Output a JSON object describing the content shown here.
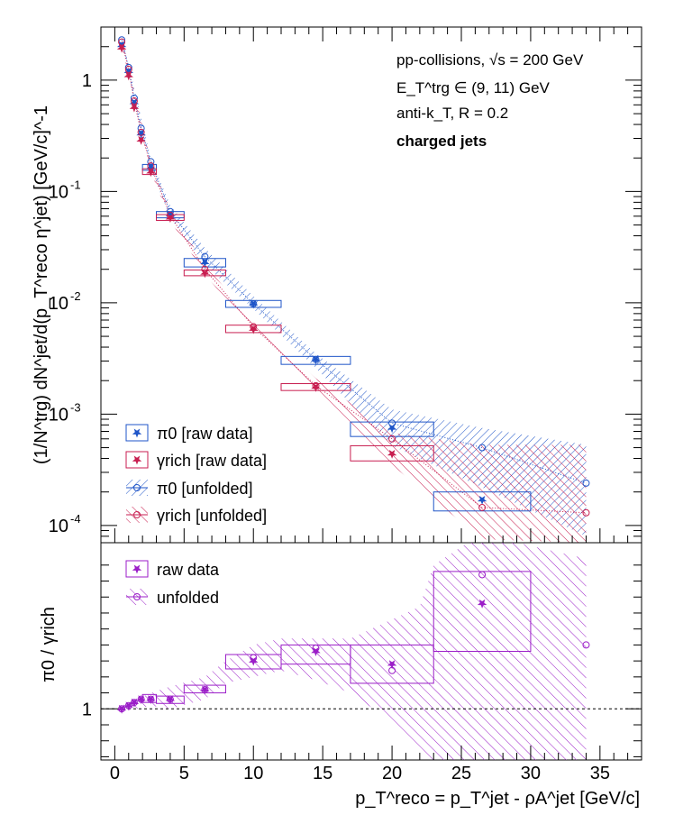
{
  "chart_data": [
    {
      "type": "scatter",
      "panel": "top",
      "yscale": "log",
      "ylim": [
        7e-05,
        3.0
      ],
      "xlim": [
        -1,
        38
      ],
      "ylabel": "(1/N^trg) dN^jet/d(p_T^reco η^jet) [GeV/c]^-1",
      "ytick_labels": [
        {
          "value": 1,
          "label": "1"
        },
        {
          "value": 0.1,
          "label": "10^-1"
        },
        {
          "value": 0.01,
          "label": "10^-2"
        },
        {
          "value": 0.001,
          "label": "10^-3"
        },
        {
          "value": 0.0001,
          "label": "10^-4"
        }
      ],
      "annotations": {
        "line1": "pp-collisions, √s = 200 GeV",
        "line2": "E_T^trg ∈ (9, 11) GeV",
        "line3": "anti-k_T, R = 0.2",
        "line4": "charged jets"
      },
      "series": [
        {
          "name": "π0 [raw data]",
          "color": "#1f55c8",
          "marker": "filled-star",
          "x": [
            0.5,
            1.0,
            1.4,
            1.9,
            2.6,
            4.0,
            6.5,
            10.0,
            14.5,
            20.0,
            26.5
          ],
          "y": [
            2.05,
            1.2,
            0.63,
            0.33,
            0.165,
            0.062,
            0.023,
            0.0098,
            0.0031,
            0.00075,
            0.00017
          ],
          "sys_boxes": [
            {
              "x0": 2.0,
              "x1": 3.0,
              "y0": 0.155,
              "y1": 0.175
            },
            {
              "x0": 3.0,
              "x1": 5.0,
              "y0": 0.058,
              "y1": 0.066
            },
            {
              "x0": 5.0,
              "x1": 8.0,
              "y0": 0.021,
              "y1": 0.025
            },
            {
              "x0": 8.0,
              "x1": 12.0,
              "y0": 0.0091,
              "y1": 0.0105
            },
            {
              "x0": 12.0,
              "x1": 17.0,
              "y0": 0.0028,
              "y1": 0.0033
            },
            {
              "x0": 17.0,
              "x1": 23.0,
              "y0": 0.00063,
              "y1": 0.00085
            },
            {
              "x0": 23.0,
              "x1": 30.0,
              "y0": 0.000135,
              "y1": 0.0002
            }
          ]
        },
        {
          "name": "γrich [raw data]",
          "color": "#c81e50",
          "marker": "filled-star",
          "x": [
            0.5,
            1.0,
            1.4,
            1.9,
            2.6,
            4.0,
            6.5,
            10.0,
            14.5,
            20.0
          ],
          "y": [
            1.95,
            1.1,
            0.57,
            0.29,
            0.15,
            0.058,
            0.0185,
            0.0058,
            0.00175,
            0.00044
          ],
          "sys_boxes": [
            {
              "x0": 2.0,
              "x1": 3.0,
              "y0": 0.142,
              "y1": 0.16
            },
            {
              "x0": 3.0,
              "x1": 5.0,
              "y0": 0.055,
              "y1": 0.062
            },
            {
              "x0": 5.0,
              "x1": 8.0,
              "y0": 0.0175,
              "y1": 0.0197
            },
            {
              "x0": 8.0,
              "x1": 12.0,
              "y0": 0.0054,
              "y1": 0.0063
            },
            {
              "x0": 12.0,
              "x1": 17.0,
              "y0": 0.00163,
              "y1": 0.00188
            },
            {
              "x0": 17.0,
              "x1": 23.0,
              "y0": 0.00038,
              "y1": 0.00052
            }
          ]
        },
        {
          "name": "π0 [unfolded]",
          "color": "#1f55c8",
          "marker": "open-circle",
          "x": [
            0.5,
            1.0,
            1.4,
            1.9,
            2.6,
            4.0,
            6.5,
            10.0,
            14.5,
            20.0,
            26.5,
            34.0
          ],
          "y": [
            2.3,
            1.3,
            0.69,
            0.37,
            0.185,
            0.066,
            0.026,
            0.0098,
            0.0031,
            0.00083,
            0.0005,
            0.00024
          ],
          "band": {
            "x": [
              0.5,
              2.6,
              4.0,
              6.5,
              10.0,
              14.5,
              20.0,
              26.5,
              34.0
            ],
            "y_low": [
              2.1,
              0.16,
              0.058,
              0.022,
              0.0088,
              0.0026,
              0.00052,
              0.00022,
              8e-05
            ],
            "y_high": [
              2.5,
              0.2,
              0.075,
              0.031,
              0.0115,
              0.0035,
              0.0011,
              0.00075,
              0.00053
            ]
          }
        },
        {
          "name": "γrich [unfolded]",
          "color": "#c81e50",
          "marker": "open-circle",
          "x": [
            0.5,
            1.0,
            1.4,
            1.9,
            2.6,
            4.0,
            6.5,
            10.0,
            14.5,
            20.0,
            26.5,
            34.0
          ],
          "y": [
            2.2,
            1.25,
            0.65,
            0.34,
            0.17,
            0.061,
            0.02,
            0.0061,
            0.0018,
            0.0006,
            0.000145,
            0.00013
          ],
          "band": {
            "x": [
              0.5,
              2.6,
              4.0,
              6.5,
              10.0,
              14.5,
              20.0,
              26.5,
              34.0
            ],
            "y_low": [
              2.0,
              0.15,
              0.055,
              0.018,
              0.0055,
              0.0015,
              0.00035,
              7.5e-05,
              7e-05
            ],
            "y_high": [
              2.4,
              0.19,
              0.068,
              0.022,
              0.0068,
              0.0021,
              0.00068,
              0.00053,
              0.00053
            ]
          }
        }
      ]
    },
    {
      "type": "scatter",
      "panel": "bottom",
      "xlabel": "p_T^reco = p_T^jet - ρA^jet [GeV/c]",
      "ylabel": "π0 / γrich",
      "ylim": [
        0.84,
        1.52
      ],
      "xlim": [
        -1,
        38
      ],
      "xticks": [
        0,
        5,
        10,
        15,
        20,
        25,
        30,
        35
      ],
      "ytick_labels": [
        {
          "value": 1,
          "label": "1"
        }
      ],
      "reference_line": 1,
      "series": [
        {
          "name": "raw data",
          "color": "#9b1ec8",
          "marker": "filled-star",
          "x": [
            0.5,
            1.0,
            1.4,
            1.9,
            2.6,
            4.0,
            6.5,
            10.0,
            14.5,
            20.0,
            26.5
          ],
          "y": [
            1.0,
            1.01,
            1.02,
            1.03,
            1.03,
            1.03,
            1.06,
            1.15,
            1.18,
            1.14,
            1.33
          ],
          "sys_boxes": [
            {
              "x0": 2.0,
              "x1": 3.0,
              "y0": 1.02,
              "y1": 1.045
            },
            {
              "x0": 3.0,
              "x1": 5.0,
              "y0": 1.017,
              "y1": 1.04
            },
            {
              "x0": 5.0,
              "x1": 8.0,
              "y0": 1.05,
              "y1": 1.074
            },
            {
              "x0": 8.0,
              "x1": 12.0,
              "y0": 1.125,
              "y1": 1.17
            },
            {
              "x0": 12.0,
              "x1": 17.0,
              "y0": 1.14,
              "y1": 1.2
            },
            {
              "x0": 17.0,
              "x1": 23.0,
              "y0": 1.08,
              "y1": 1.2
            },
            {
              "x0": 23.0,
              "x1": 30.0,
              "y0": 1.18,
              "y1": 1.43
            }
          ]
        },
        {
          "name": "unfolded",
          "color": "#9b1ec8",
          "marker": "open-circle",
          "x": [
            0.5,
            1.0,
            1.4,
            1.9,
            2.6,
            4.0,
            6.5,
            10.0,
            14.5,
            20.0,
            26.5,
            34.0
          ],
          "y": [
            1.0,
            1.01,
            1.02,
            1.03,
            1.03,
            1.03,
            1.06,
            1.16,
            1.19,
            1.12,
            1.42,
            1.2
          ],
          "band": {
            "x": [
              0.5,
              2.6,
              4.0,
              6.5,
              8.0,
              10.0,
              12.0,
              14.5,
              17.0,
              20.0,
              22.0,
              23.0,
              26.5,
              30.0,
              34.0
            ],
            "y_low": [
              0.99,
              1.01,
              1.0,
              1.03,
              1.08,
              1.1,
              1.12,
              1.09,
              1.05,
              0.96,
              0.86,
              0.84,
              0.84,
              0.84,
              0.84
            ],
            "y_high": [
              1.01,
              1.05,
              1.07,
              1.1,
              1.15,
              1.2,
              1.22,
              1.22,
              1.22,
              1.28,
              1.32,
              1.45,
              1.55,
              1.51,
              1.47
            ]
          }
        }
      ]
    }
  ]
}
